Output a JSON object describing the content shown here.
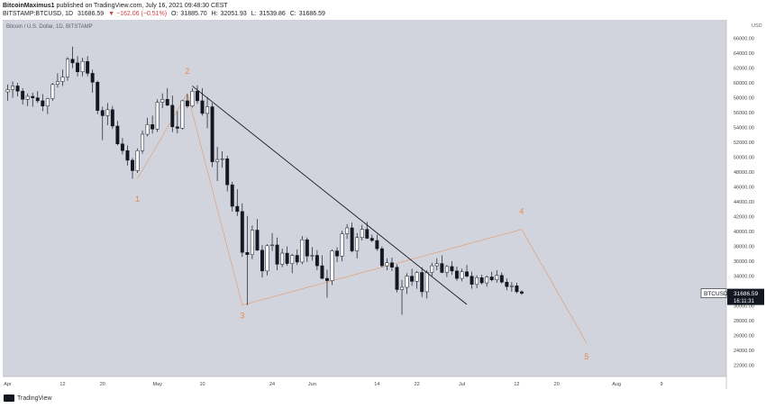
{
  "header": {
    "author": "BitcoinMaximus1",
    "published": "published on TradingView.com, July 16, 2021 09:48:30 CEST",
    "symbol": "BITSTAMP:BTCUSD, 1D",
    "last": "31686.59",
    "change": "▼ −162.06 (−0.51%)",
    "open_label": "O:",
    "open": "31885.70",
    "high_label": "H:",
    "high": "32051.93",
    "low_label": "L:",
    "low": "31539.86",
    "close_label": "C:",
    "close": "31686.59"
  },
  "footer": {
    "brand": "TradingView"
  },
  "colors": {
    "pane": "#d1d4dc",
    "wave": "#e8874a",
    "candle_up": "#ffffff",
    "candle_down": "#131722",
    "trend": "#131722"
  },
  "chart_data": {
    "type": "candlestick",
    "title": "Bitcoin / U.S. Dollar, 1D, BITSTAMP",
    "currency_label": "",
    "y_ticks": [
      22000,
      24000,
      26000,
      28000,
      30000,
      32000,
      34000,
      36000,
      38000,
      40000,
      42000,
      44000,
      46000,
      48000,
      50000,
      52000,
      54000,
      56000,
      58000,
      60000,
      62000,
      64000,
      66000
    ],
    "y_tick_labels": [
      "22000.00",
      "24000.00",
      "26000.00",
      "28000.00",
      "30000.00",
      "32000.00",
      "34000.00",
      "36000.00",
      "38000.00",
      "40000.00",
      "42000.00",
      "44000.00",
      "46000.00",
      "48000.00",
      "50000.00",
      "52000.00",
      "54000.00",
      "56000.00",
      "58000.00",
      "60000.00",
      "62000.00",
      "64000.00",
      "66000.00"
    ],
    "x_tick_labels": [
      "Apr",
      "12",
      "20",
      "May",
      "10",
      "24",
      "Jun",
      "14",
      "22",
      "Jul",
      "12",
      "20",
      "Aug",
      "9"
    ],
    "x_tick_days": [
      0,
      11,
      19,
      30,
      39,
      53,
      61,
      74,
      82,
      91,
      102,
      110,
      122,
      131
    ],
    "x_range_days": [
      -1,
      144
    ],
    "y_range": [
      20500,
      68500
    ],
    "price_label": "BTCUSD",
    "price_value": "31686.59",
    "countdown": "16:11:31",
    "currency": "USD",
    "candles": [
      {
        "d": 0,
        "o": 58800,
        "h": 59800,
        "l": 57600,
        "c": 59100
      },
      {
        "d": 1,
        "o": 59100,
        "h": 60200,
        "l": 58000,
        "c": 59600
      },
      {
        "d": 2,
        "o": 59600,
        "h": 60000,
        "l": 58200,
        "c": 58900
      },
      {
        "d": 3,
        "o": 58900,
        "h": 59300,
        "l": 57100,
        "c": 57800
      },
      {
        "d": 4,
        "o": 57800,
        "h": 58600,
        "l": 56900,
        "c": 58200
      },
      {
        "d": 5,
        "o": 58200,
        "h": 58700,
        "l": 56800,
        "c": 58000
      },
      {
        "d": 6,
        "o": 58000,
        "h": 58900,
        "l": 57300,
        "c": 57600
      },
      {
        "d": 7,
        "o": 57600,
        "h": 58500,
        "l": 56200,
        "c": 56900
      },
      {
        "d": 8,
        "o": 56900,
        "h": 58000,
        "l": 55800,
        "c": 57900
      },
      {
        "d": 9,
        "o": 57900,
        "h": 60000,
        "l": 57600,
        "c": 59800
      },
      {
        "d": 10,
        "o": 59800,
        "h": 61300,
        "l": 59400,
        "c": 60200
      },
      {
        "d": 11,
        "o": 60200,
        "h": 61800,
        "l": 59600,
        "c": 60800
      },
      {
        "d": 12,
        "o": 60800,
        "h": 63500,
        "l": 60300,
        "c": 63200
      },
      {
        "d": 13,
        "o": 63200,
        "h": 64900,
        "l": 62000,
        "c": 62700
      },
      {
        "d": 14,
        "o": 62700,
        "h": 63600,
        "l": 60900,
        "c": 61500
      },
      {
        "d": 15,
        "o": 61500,
        "h": 63400,
        "l": 60900,
        "c": 62900
      },
      {
        "d": 16,
        "o": 62900,
        "h": 63600,
        "l": 60900,
        "c": 61300
      },
      {
        "d": 17,
        "o": 61300,
        "h": 61800,
        "l": 58700,
        "c": 60100
      },
      {
        "d": 18,
        "o": 60100,
        "h": 60300,
        "l": 55800,
        "c": 56300
      },
      {
        "d": 19,
        "o": 56300,
        "h": 56800,
        "l": 52300,
        "c": 55600
      },
      {
        "d": 20,
        "o": 55600,
        "h": 57300,
        "l": 54300,
        "c": 56400
      },
      {
        "d": 21,
        "o": 56400,
        "h": 56900,
        "l": 53800,
        "c": 54200
      },
      {
        "d": 22,
        "o": 54200,
        "h": 54900,
        "l": 51600,
        "c": 51800
      },
      {
        "d": 23,
        "o": 51800,
        "h": 52600,
        "l": 50400,
        "c": 50900
      },
      {
        "d": 24,
        "o": 50900,
        "h": 51600,
        "l": 48900,
        "c": 49600
      },
      {
        "d": 25,
        "o": 49600,
        "h": 49900,
        "l": 47100,
        "c": 48200
      },
      {
        "d": 26,
        "o": 48200,
        "h": 51200,
        "l": 47900,
        "c": 50900
      },
      {
        "d": 27,
        "o": 50900,
        "h": 53600,
        "l": 50500,
        "c": 53100
      },
      {
        "d": 28,
        "o": 53100,
        "h": 55300,
        "l": 52800,
        "c": 54400
      },
      {
        "d": 29,
        "o": 54400,
        "h": 55600,
        "l": 53200,
        "c": 53800
      },
      {
        "d": 30,
        "o": 53800,
        "h": 57800,
        "l": 53400,
        "c": 57400
      },
      {
        "d": 31,
        "o": 57400,
        "h": 58600,
        "l": 56600,
        "c": 57800
      },
      {
        "d": 32,
        "o": 57800,
        "h": 59300,
        "l": 56900,
        "c": 57000
      },
      {
        "d": 33,
        "o": 57000,
        "h": 58300,
        "l": 53400,
        "c": 54100
      },
      {
        "d": 34,
        "o": 54100,
        "h": 56200,
        "l": 53200,
        "c": 53900
      },
      {
        "d": 35,
        "o": 53900,
        "h": 57700,
        "l": 53700,
        "c": 57600
      },
      {
        "d": 36,
        "o": 57600,
        "h": 58500,
        "l": 56600,
        "c": 56900
      },
      {
        "d": 37,
        "o": 56900,
        "h": 59300,
        "l": 56700,
        "c": 58900
      },
      {
        "d": 38,
        "o": 58900,
        "h": 59700,
        "l": 57200,
        "c": 57600
      },
      {
        "d": 39,
        "o": 57600,
        "h": 59300,
        "l": 55600,
        "c": 55900
      },
      {
        "d": 40,
        "o": 55900,
        "h": 58100,
        "l": 53900,
        "c": 56800
      },
      {
        "d": 41,
        "o": 56800,
        "h": 57300,
        "l": 48700,
        "c": 49400
      },
      {
        "d": 42,
        "o": 49400,
        "h": 51400,
        "l": 46800,
        "c": 49700
      },
      {
        "d": 43,
        "o": 49700,
        "h": 50800,
        "l": 48600,
        "c": 49800
      },
      {
        "d": 44,
        "o": 49800,
        "h": 50200,
        "l": 45400,
        "c": 46300
      },
      {
        "d": 45,
        "o": 46300,
        "h": 46700,
        "l": 42700,
        "c": 43400
      },
      {
        "d": 46,
        "o": 43400,
        "h": 45700,
        "l": 42100,
        "c": 42700
      },
      {
        "d": 47,
        "o": 42700,
        "h": 43800,
        "l": 36600,
        "c": 37200
      },
      {
        "d": 48,
        "o": 37200,
        "h": 42100,
        "l": 30100,
        "c": 36900
      },
      {
        "d": 49,
        "o": 36900,
        "h": 40800,
        "l": 36300,
        "c": 40200
      },
      {
        "d": 50,
        "o": 40200,
        "h": 41700,
        "l": 37400,
        "c": 37500
      },
      {
        "d": 51,
        "o": 37500,
        "h": 38200,
        "l": 33800,
        "c": 34700
      },
      {
        "d": 52,
        "o": 34700,
        "h": 38300,
        "l": 34100,
        "c": 38100
      },
      {
        "d": 53,
        "o": 38100,
        "h": 39800,
        "l": 37400,
        "c": 38200
      },
      {
        "d": 54,
        "o": 38200,
        "h": 39200,
        "l": 34800,
        "c": 35600
      },
      {
        "d": 55,
        "o": 35600,
        "h": 37700,
        "l": 35200,
        "c": 37100
      },
      {
        "d": 56,
        "o": 37100,
        "h": 38000,
        "l": 35400,
        "c": 35700
      },
      {
        "d": 57,
        "o": 35700,
        "h": 37000,
        "l": 34400,
        "c": 36800
      },
      {
        "d": 58,
        "o": 36800,
        "h": 37600,
        "l": 35500,
        "c": 35900
      },
      {
        "d": 59,
        "o": 35900,
        "h": 39400,
        "l": 35600,
        "c": 38900
      },
      {
        "d": 60,
        "o": 38900,
        "h": 39200,
        "l": 35900,
        "c": 36700
      },
      {
        "d": 61,
        "o": 36700,
        "h": 37900,
        "l": 36100,
        "c": 36800
      },
      {
        "d": 62,
        "o": 36800,
        "h": 37500,
        "l": 34800,
        "c": 35400
      },
      {
        "d": 63,
        "o": 35400,
        "h": 36800,
        "l": 33600,
        "c": 33700
      },
      {
        "d": 64,
        "o": 33700,
        "h": 34900,
        "l": 31100,
        "c": 33400
      },
      {
        "d": 65,
        "o": 33400,
        "h": 37600,
        "l": 32800,
        "c": 37400
      },
      {
        "d": 66,
        "o": 37400,
        "h": 37900,
        "l": 35900,
        "c": 36700
      },
      {
        "d": 67,
        "o": 36700,
        "h": 40100,
        "l": 36000,
        "c": 39700
      },
      {
        "d": 68,
        "o": 39700,
        "h": 41000,
        "l": 39000,
        "c": 40500
      },
      {
        "d": 69,
        "o": 40500,
        "h": 41200,
        "l": 37200,
        "c": 37400
      },
      {
        "d": 70,
        "o": 37400,
        "h": 39800,
        "l": 36400,
        "c": 39200
      },
      {
        "d": 71,
        "o": 39200,
        "h": 40900,
        "l": 38800,
        "c": 40300
      },
      {
        "d": 72,
        "o": 40300,
        "h": 41300,
        "l": 39000,
        "c": 39100
      },
      {
        "d": 73,
        "o": 39100,
        "h": 39600,
        "l": 38600,
        "c": 38800
      },
      {
        "d": 74,
        "o": 38800,
        "h": 39600,
        "l": 37400,
        "c": 37700
      },
      {
        "d": 75,
        "o": 37700,
        "h": 38000,
        "l": 35200,
        "c": 35400
      },
      {
        "d": 76,
        "o": 35400,
        "h": 36400,
        "l": 34800,
        "c": 35800
      },
      {
        "d": 77,
        "o": 35800,
        "h": 36500,
        "l": 34700,
        "c": 35200
      },
      {
        "d": 78,
        "o": 35200,
        "h": 35600,
        "l": 31800,
        "c": 32200
      },
      {
        "d": 79,
        "o": 32200,
        "h": 33500,
        "l": 28800,
        "c": 32500
      },
      {
        "d": 80,
        "o": 32500,
        "h": 34400,
        "l": 31600,
        "c": 34000
      },
      {
        "d": 81,
        "o": 34000,
        "h": 35000,
        "l": 32700,
        "c": 33300
      },
      {
        "d": 82,
        "o": 33300,
        "h": 34700,
        "l": 32300,
        "c": 34500
      },
      {
        "d": 83,
        "o": 34500,
        "h": 35200,
        "l": 31200,
        "c": 31900
      },
      {
        "d": 84,
        "o": 31900,
        "h": 34800,
        "l": 31000,
        "c": 34500
      },
      {
        "d": 85,
        "o": 34500,
        "h": 35800,
        "l": 34000,
        "c": 35400
      },
      {
        "d": 86,
        "o": 35400,
        "h": 36400,
        "l": 34800,
        "c": 35700
      },
      {
        "d": 87,
        "o": 35700,
        "h": 36800,
        "l": 34400,
        "c": 34500
      },
      {
        "d": 88,
        "o": 34500,
        "h": 35500,
        "l": 33900,
        "c": 35300
      },
      {
        "d": 89,
        "o": 35300,
        "h": 36000,
        "l": 34200,
        "c": 34700
      },
      {
        "d": 90,
        "o": 34700,
        "h": 35300,
        "l": 33400,
        "c": 33700
      },
      {
        "d": 91,
        "o": 33700,
        "h": 35000,
        "l": 33300,
        "c": 34600
      },
      {
        "d": 92,
        "o": 34600,
        "h": 35500,
        "l": 33800,
        "c": 34000
      },
      {
        "d": 93,
        "o": 34000,
        "h": 34600,
        "l": 32300,
        "c": 32900
      },
      {
        "d": 94,
        "o": 32900,
        "h": 34100,
        "l": 32400,
        "c": 33800
      },
      {
        "d": 95,
        "o": 33800,
        "h": 34200,
        "l": 32900,
        "c": 33100
      },
      {
        "d": 96,
        "o": 33100,
        "h": 34100,
        "l": 32600,
        "c": 33900
      },
      {
        "d": 97,
        "o": 33900,
        "h": 34600,
        "l": 33300,
        "c": 33500
      },
      {
        "d": 98,
        "o": 33500,
        "h": 34800,
        "l": 33100,
        "c": 34100
      },
      {
        "d": 99,
        "o": 34100,
        "h": 34500,
        "l": 33000,
        "c": 33200
      },
      {
        "d": 100,
        "o": 33200,
        "h": 33700,
        "l": 32100,
        "c": 32600
      },
      {
        "d": 101,
        "o": 32600,
        "h": 33200,
        "l": 31900,
        "c": 32700
      },
      {
        "d": 102,
        "o": 32700,
        "h": 33100,
        "l": 31700,
        "c": 31900
      },
      {
        "d": 103,
        "o": 31900,
        "h": 32100,
        "l": 31500,
        "c": 31700
      }
    ],
    "trendline": {
      "from": {
        "d": 37,
        "v": 59600
      },
      "to": {
        "d": 92,
        "v": 30200
      }
    },
    "waves": [
      {
        "label": "1",
        "d": 26,
        "v": 47100,
        "label_v": 44000
      },
      {
        "label": "2",
        "d": 36,
        "v": 58600,
        "label_v": 61200
      },
      {
        "label": "3",
        "d": 47,
        "v": 30100,
        "label_v": 28300
      },
      {
        "label": "4",
        "d": 103,
        "v": 40300,
        "label_v": 42400
      },
      {
        "label": "5",
        "d": 116,
        "v": 25000,
        "label_v": 22800
      }
    ],
    "wave_path": [
      {
        "d": 26,
        "v": 47100
      },
      {
        "d": 36,
        "v": 58600
      },
      {
        "d": 47,
        "v": 30100
      },
      {
        "d": 103,
        "v": 40300
      },
      {
        "d": 116,
        "v": 25000
      }
    ]
  }
}
